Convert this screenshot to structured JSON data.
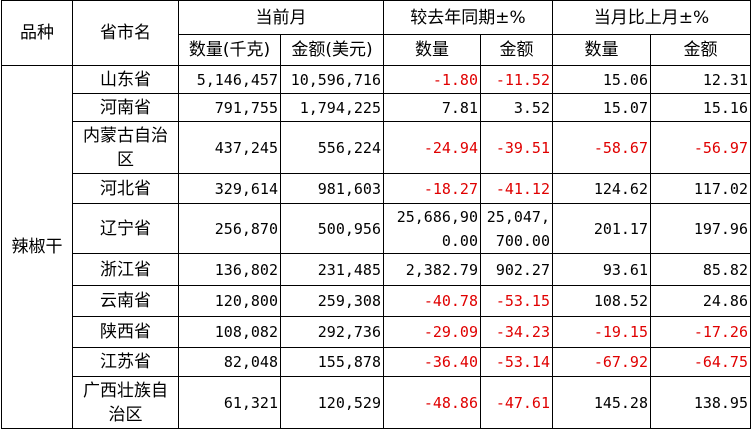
{
  "table": {
    "header": {
      "variety": "品种",
      "region": "省市名",
      "groups": [
        "当前月",
        "较去年同期±%",
        "当月比上月±%"
      ],
      "columns": [
        "数量(千克)",
        "金额(美元)",
        "数量",
        "金额",
        "数量",
        "金额"
      ]
    },
    "variety": "辣椒干",
    "rows": [
      [
        "山东省",
        "5,146,457",
        "10,596,716",
        "-1.80",
        "-11.52",
        "15.06",
        "12.31"
      ],
      [
        "河南省",
        "791,755",
        "1,794,225",
        "7.81",
        "3.52",
        "15.07",
        "15.16"
      ],
      [
        "内蒙古自治区",
        "437,245",
        "556,224",
        "-24.94",
        "-39.51",
        "-58.67",
        "-56.97"
      ],
      [
        "河北省",
        "329,614",
        "981,603",
        "-18.27",
        "-41.12",
        "124.62",
        "117.02"
      ],
      [
        "辽宁省",
        "256,870",
        "500,956",
        "25,686,900.00",
        "25,047,700.00",
        "201.17",
        "197.96"
      ],
      [
        "浙江省",
        "136,802",
        "231,485",
        "2,382.79",
        "902.27",
        "93.61",
        "85.82"
      ],
      [
        "云南省",
        "120,800",
        "259,308",
        "-40.78",
        "-53.15",
        "108.52",
        "24.86"
      ],
      [
        "陕西省",
        "108,082",
        "292,736",
        "-29.09",
        "-34.23",
        "-19.15",
        "-17.26"
      ],
      [
        "江苏省",
        "82,048",
        "155,878",
        "-36.40",
        "-53.14",
        "-67.92",
        "-64.75"
      ],
      [
        "广西壮族自治区",
        "61,321",
        "120,529",
        "-48.86",
        "-47.61",
        "145.28",
        "138.95"
      ]
    ]
  }
}
